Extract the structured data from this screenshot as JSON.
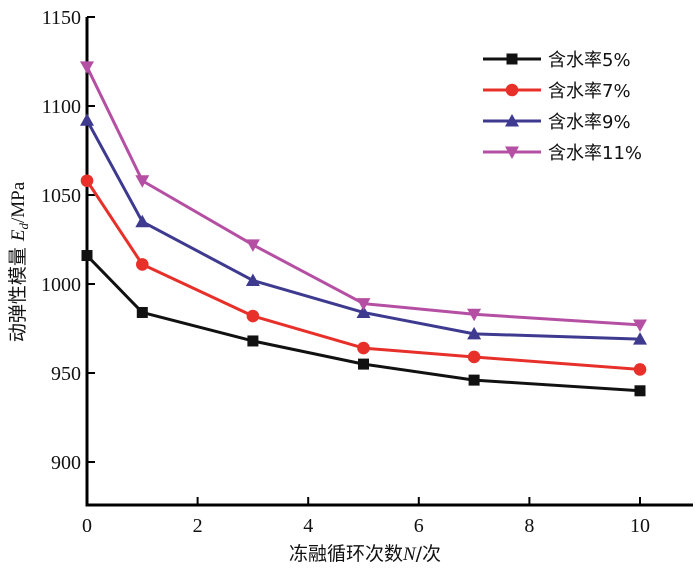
{
  "chart_data": {
    "type": "line",
    "title": "",
    "xlabel": "冻融循环次数N/次",
    "xlabel_parts": {
      "prefix": "冻融循环次数",
      "var": "N",
      "suffix": "/次"
    },
    "ylabel": "动弹性模量 Ed/MPa",
    "ylabel_parts": {
      "prefix": "动弹性模量 ",
      "var": "E",
      "sub": "d",
      "suffix": "/MPa"
    },
    "x": [
      0,
      1,
      3,
      5,
      7,
      10
    ],
    "xlim": [
      0,
      11
    ],
    "ylim": [
      875,
      1150
    ],
    "xticks": [
      0,
      2,
      4,
      6,
      8,
      10
    ],
    "yticks": [
      900,
      950,
      1000,
      1050,
      1100,
      1150
    ],
    "grid": false,
    "legend_position": "top-right",
    "series": [
      {
        "name": "含水率5%",
        "color": "#111111",
        "marker": "square",
        "values": [
          1016,
          984,
          968,
          955,
          946,
          940
        ]
      },
      {
        "name": "含水率7%",
        "color": "#e8302a",
        "marker": "circle",
        "values": [
          1058,
          1011,
          982,
          964,
          959,
          952
        ]
      },
      {
        "name": "含水率9%",
        "color": "#3d3a8f",
        "marker": "triangle-up",
        "values": [
          1092,
          1035,
          1002,
          984,
          972,
          969
        ]
      },
      {
        "name": "含水率11%",
        "color": "#b54fa3",
        "marker": "triangle-down",
        "values": [
          1122,
          1058,
          1022,
          989,
          983,
          977
        ]
      }
    ]
  }
}
